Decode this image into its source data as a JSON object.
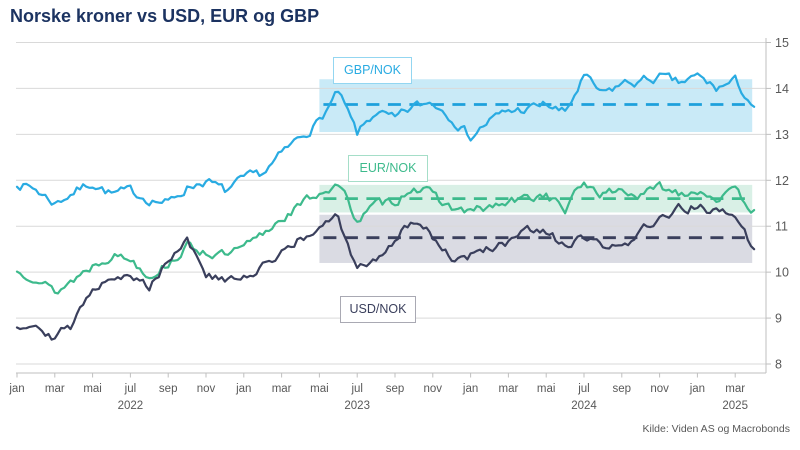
{
  "title": "Norske kroner vs USD, EUR og GBP",
  "source": "Kilde: Viden AS og Macrobonds",
  "legend": {
    "gbp": {
      "label": "GBP/NOK"
    },
    "eur": {
      "label": "EUR/NOK"
    },
    "usd": {
      "label": "USD/NOK"
    }
  },
  "colors": {
    "title_text": "#1C3361",
    "axis_text": "#595959",
    "grid": "#D9D9D9",
    "axis_line": "#BFBFBF",
    "gbp_line": "#29ABE2",
    "gbp_band": "#C9EAF7",
    "gbp_mean": "#1DA0DC",
    "eur_line": "#3DBA8C",
    "eur_band": "#D9F0E6",
    "eur_mean": "#3DBA8C",
    "usd_line": "#3A3F5C",
    "usd_band": "#DADBE3",
    "usd_mean": "#3A3F5C"
  },
  "chart_data": {
    "type": "line",
    "title": "Norske kroner vs USD, EUR og GBP",
    "x_start": "2022-01",
    "x_end": "2025-04",
    "x_unit": "month",
    "ylim": [
      8,
      15
    ],
    "y_ticks": [
      15,
      14,
      13,
      12,
      11,
      10,
      9,
      8
    ],
    "x_tick_labels": [
      "jan",
      "mar",
      "mai",
      "jul",
      "sep",
      "nov",
      "jan",
      "mar",
      "mai",
      "jul",
      "sep",
      "nov",
      "jan",
      "mar",
      "mai",
      "jul",
      "sep",
      "nov",
      "jan",
      "mar"
    ],
    "year_labels": [
      {
        "text": "2022",
        "month_index": 6
      },
      {
        "text": "2023",
        "month_index": 18
      },
      {
        "text": "2024",
        "month_index": 30
      },
      {
        "text": "2025",
        "month_index": 38
      }
    ],
    "grid": "horizontal",
    "legend_position": "inline-labels",
    "series": [
      {
        "name": "GBP/NOK",
        "values": [
          11.95,
          11.8,
          11.5,
          11.75,
          11.95,
          11.7,
          11.75,
          11.6,
          11.5,
          11.85,
          12.0,
          11.75,
          12.0,
          12.15,
          12.55,
          12.95,
          13.3,
          13.9,
          13.0,
          13.5,
          13.3,
          13.6,
          13.7,
          13.4,
          12.95,
          13.3,
          13.5,
          13.55,
          13.65,
          13.45,
          14.25,
          13.85,
          14.1,
          14.15,
          14.25,
          14.1,
          14.25,
          14.0,
          14.15,
          13.6
        ]
      },
      {
        "name": "EUR/NOK",
        "values": [
          10.0,
          9.95,
          9.55,
          9.85,
          10.15,
          10.4,
          10.3,
          9.95,
          10.2,
          10.55,
          10.45,
          10.35,
          10.5,
          10.8,
          11.2,
          11.45,
          11.75,
          11.9,
          11.15,
          11.45,
          11.55,
          11.9,
          11.65,
          11.4,
          11.3,
          11.4,
          11.5,
          11.6,
          11.7,
          11.35,
          11.95,
          11.7,
          11.8,
          11.65,
          11.85,
          11.75,
          11.8,
          11.65,
          11.7,
          11.35
        ]
      },
      {
        "name": "USD/NOK",
        "values": [
          8.85,
          8.9,
          8.6,
          8.85,
          9.7,
          9.95,
          9.85,
          9.7,
          10.3,
          10.75,
          9.95,
          9.8,
          9.85,
          10.1,
          10.5,
          10.7,
          10.9,
          11.2,
          10.0,
          10.3,
          10.7,
          11.15,
          10.8,
          10.3,
          10.35,
          10.55,
          10.6,
          10.9,
          10.8,
          10.6,
          10.7,
          10.55,
          10.45,
          11.0,
          11.1,
          11.35,
          11.45,
          11.3,
          11.2,
          10.5
        ]
      }
    ],
    "bands": [
      {
        "series": "GBP/NOK",
        "low": 13.05,
        "high": 14.2,
        "mean": 13.65,
        "start_month_index": 16
      },
      {
        "series": "EUR/NOK",
        "low": 11.3,
        "high": 11.9,
        "mean": 11.6,
        "start_month_index": 16
      },
      {
        "series": "USD/NOK",
        "low": 10.2,
        "high": 11.25,
        "mean": 10.75,
        "start_month_index": 16
      }
    ]
  }
}
